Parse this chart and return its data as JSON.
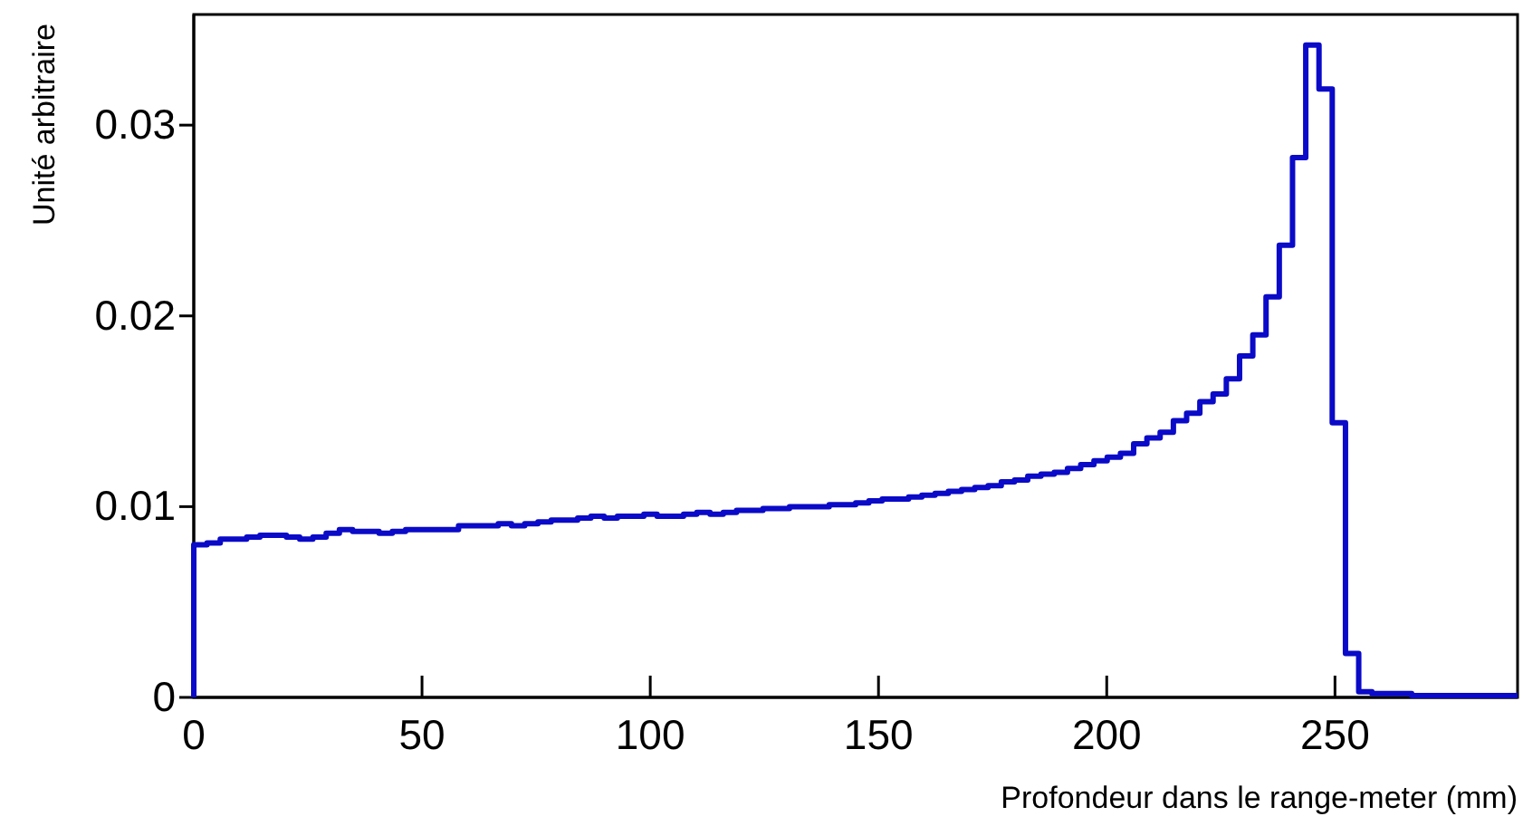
{
  "chart_data": {
    "type": "histogram",
    "xlabel": "Profondeur dans le range-meter (mm)",
    "ylabel": "Unité arbitraire",
    "color": "#0a0ac8",
    "bins": [
      0,
      2.9,
      5.8,
      8.7,
      11.6,
      14.5,
      17.4,
      20.3,
      23.2,
      26.1,
      29,
      31.9,
      34.8,
      37.7,
      40.6,
      43.5,
      46.4,
      49.3,
      52.2,
      55.1,
      58,
      60.9,
      63.8,
      66.7,
      69.6,
      72.5,
      75.4,
      78.3,
      81.2,
      84.1,
      87,
      89.9,
      92.8,
      95.7,
      98.6,
      101.5,
      104.4,
      107.3,
      110.2,
      113.1,
      116,
      118.9,
      121.8,
      124.7,
      127.6,
      130.5,
      133.4,
      136.3,
      139.2,
      142.1,
      145,
      147.9,
      150.8,
      153.7,
      156.6,
      159.5,
      162.4,
      165.3,
      168.2,
      171.1,
      174,
      176.9,
      179.8,
      182.7,
      185.6,
      188.5,
      191.4,
      194.3,
      197.2,
      200.1,
      203,
      205.9,
      208.8,
      211.7,
      214.6,
      217.5,
      220.4,
      223.3,
      226.2,
      229.1,
      232,
      234.9,
      237.8,
      240.7,
      243.6,
      246.5,
      249.4,
      252.3,
      255.2,
      258.1,
      261,
      263.9,
      266.8,
      269.7,
      272.6,
      275.5,
      278.4,
      281.3,
      284.2,
      287.1,
      290
    ],
    "values": [
      0.008,
      0.0081,
      0.0083,
      0.0083,
      0.0084,
      0.0085,
      0.0085,
      0.0084,
      0.0083,
      0.0084,
      0.0086,
      0.0088,
      0.0087,
      0.0087,
      0.0086,
      0.0087,
      0.0088,
      0.0088,
      0.0088,
      0.0088,
      0.009,
      0.009,
      0.009,
      0.0091,
      0.009,
      0.0091,
      0.0092,
      0.0093,
      0.0093,
      0.0094,
      0.0095,
      0.0094,
      0.0095,
      0.0095,
      0.0096,
      0.0095,
      0.0095,
      0.0096,
      0.0097,
      0.0096,
      0.0097,
      0.0098,
      0.0098,
      0.0099,
      0.0099,
      0.01,
      0.01,
      0.01,
      0.0101,
      0.0101,
      0.0102,
      0.0103,
      0.0104,
      0.0104,
      0.0105,
      0.0106,
      0.0107,
      0.0108,
      0.0109,
      0.011,
      0.0111,
      0.0113,
      0.0114,
      0.0116,
      0.0117,
      0.0118,
      0.012,
      0.0122,
      0.0124,
      0.0126,
      0.0128,
      0.0133,
      0.0136,
      0.0139,
      0.0145,
      0.0149,
      0.0155,
      0.0159,
      0.0167,
      0.0179,
      0.019,
      0.021,
      0.0237,
      0.0283,
      0.0342,
      0.0319,
      0.0144,
      0.0023,
      0.0003,
      0.0002,
      0.0002,
      0.0002,
      0.0001,
      0.0001,
      0.0001,
      0.0001,
      0.0001,
      0.0001,
      0.0001,
      0.0001
    ],
    "xlim": [
      0,
      290
    ],
    "ylim": [
      0,
      0.0358
    ],
    "xticks": [
      0,
      50,
      100,
      150,
      200,
      250
    ],
    "yticks": [
      0,
      0.01,
      0.02,
      0.03
    ],
    "grid": false
  }
}
